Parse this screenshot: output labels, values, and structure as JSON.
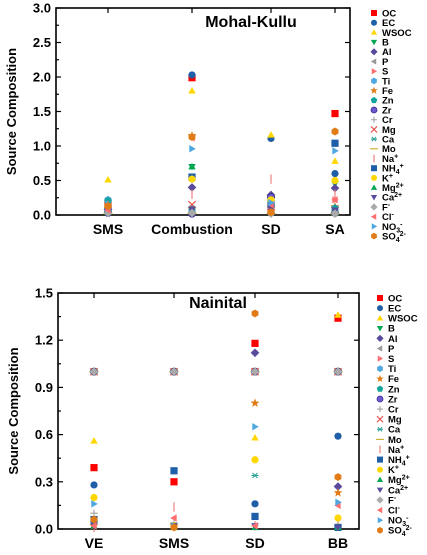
{
  "chart_data": [
    {
      "type": "scatter",
      "title": "Mohal-Kullu",
      "xlabel": "",
      "ylabel": "Source Composition",
      "categories": [
        "SMS",
        "Combustion",
        "SD",
        "SA"
      ],
      "ylim": [
        0,
        3.0
      ],
      "yticks": [
        0.0,
        0.5,
        1.0,
        1.5,
        2.0,
        2.5,
        3.0
      ],
      "ytick_labels": [
        "0.0",
        "0.5",
        "1.0",
        "1.5",
        "2.0",
        "2.5",
        "3.0"
      ],
      "grid": false,
      "legend_position": "right",
      "series": [
        {
          "key": "OC",
          "values": [
            0.15,
            1.99,
            0.08,
            1.47
          ]
        },
        {
          "key": "EC",
          "values": [
            0.05,
            2.03,
            1.11,
            0.6
          ]
        },
        {
          "key": "WSOC",
          "values": [
            0.51,
            1.8,
            1.16,
            0.78
          ]
        },
        {
          "key": "B",
          "values": [
            0.07,
            0.7,
            0.08,
            0.45
          ]
        },
        {
          "key": "Al",
          "values": [
            0.08,
            0.4,
            0.29,
            0.39
          ]
        },
        {
          "key": "P",
          "values": [
            0.04,
            0.05,
            0.04,
            0.04
          ]
        },
        {
          "key": "S",
          "values": [
            0.18,
            0.04,
            0.19,
            0.22
          ]
        },
        {
          "key": "Ti",
          "values": [
            0.22,
            0.06,
            0.12,
            0.05
          ]
        },
        {
          "key": "Fe",
          "values": [
            0.12,
            1.15,
            0.1,
            0.12
          ]
        },
        {
          "key": "Zn",
          "values": [
            0.2,
            0.1,
            0.14,
            0.1
          ]
        },
        {
          "key": "Zr",
          "values": [
            0.03,
            0.02,
            0.26,
            0.03
          ]
        },
        {
          "key": "Cr",
          "values": [
            0.05,
            0.05,
            0.05,
            0.05
          ]
        },
        {
          "key": "Mg",
          "values": [
            0.06,
            0.15,
            0.07,
            0.06
          ]
        },
        {
          "key": "Ca",
          "values": [
            0.1,
            0.06,
            0.22,
            0.08
          ]
        },
        {
          "key": "Mo",
          "values": [
            0.02,
            0.02,
            0.02,
            0.02
          ]
        },
        {
          "key": "Na+",
          "values": [
            0.14,
            0.3,
            0.52,
            0.3
          ]
        },
        {
          "key": "NH4+",
          "values": [
            0.09,
            0.55,
            0.16,
            1.04
          ]
        },
        {
          "key": "K+",
          "values": [
            0.12,
            0.52,
            0.22,
            0.5
          ]
        },
        {
          "key": "Mg2+",
          "values": [
            0.04,
            0.7,
            0.05,
            0.03
          ]
        },
        {
          "key": "Ca2+",
          "values": [
            0.06,
            0.08,
            0.1,
            0.07
          ]
        },
        {
          "key": "F-",
          "values": [
            0.03,
            0.03,
            0.02,
            0.02
          ]
        },
        {
          "key": "Cl-",
          "values": [
            0.07,
            1.12,
            0.15,
            0.22
          ]
        },
        {
          "key": "NO3-",
          "values": [
            0.16,
            0.96,
            0.18,
            0.93
          ]
        },
        {
          "key": "SO4 2-",
          "values": [
            0.13,
            1.13,
            0.04,
            1.21
          ]
        }
      ]
    },
    {
      "type": "scatter",
      "title": "Nainital",
      "xlabel": "",
      "ylabel": "Source Composition",
      "categories": [
        "VE",
        "SMS",
        "SD",
        "BB"
      ],
      "ylim": [
        0,
        1.5
      ],
      "yticks": [
        0.0,
        0.3,
        0.6,
        0.9,
        1.2,
        1.5
      ],
      "ytick_labels": [
        "0.0",
        "0.3",
        "0.6",
        "0.9",
        "1.2",
        "1.5"
      ],
      "grid": false,
      "legend_position": "right",
      "series": [
        {
          "key": "OC",
          "values": [
            0.39,
            0.3,
            1.18,
            1.34
          ]
        },
        {
          "key": "EC",
          "values": [
            0.28,
            0.02,
            0.16,
            0.59
          ]
        },
        {
          "key": "WSOC",
          "values": [
            0.56,
            0.02,
            0.58,
            1.36
          ]
        },
        {
          "key": "B",
          "values": [
            1.0,
            1.0,
            1.0,
            1.0
          ]
        },
        {
          "key": "Al",
          "values": [
            1.0,
            1.0,
            1.12,
            0.27
          ]
        },
        {
          "key": "P",
          "values": [
            1.0,
            1.0,
            1.0,
            1.0
          ]
        },
        {
          "key": "S",
          "values": [
            1.0,
            1.0,
            1.0,
            1.0
          ]
        },
        {
          "key": "Ti",
          "values": [
            1.0,
            1.0,
            1.0,
            1.0
          ]
        },
        {
          "key": "Fe",
          "values": [
            0.02,
            0.02,
            0.8,
            0.23
          ]
        },
        {
          "key": "Zn",
          "values": [
            1.0,
            1.0,
            1.0,
            1.0
          ]
        },
        {
          "key": "Zr",
          "values": [
            1.0,
            1.0,
            1.0,
            1.0
          ]
        },
        {
          "key": "Cr",
          "values": [
            0.1,
            0.04,
            0.02,
            0.02
          ]
        },
        {
          "key": "Mg",
          "values": [
            1.0,
            1.0,
            1.0,
            1.0
          ]
        },
        {
          "key": "Ca",
          "values": [
            1.0,
            1.0,
            0.34,
            1.0
          ]
        },
        {
          "key": "Mo",
          "values": [
            1.0,
            1.0,
            1.0,
            1.0
          ]
        },
        {
          "key": "Na+",
          "values": [
            0.01,
            0.14,
            0.02,
            0.02
          ]
        },
        {
          "key": "NH4+",
          "values": [
            0.06,
            0.37,
            0.08,
            0.01
          ]
        },
        {
          "key": "K+",
          "values": [
            0.2,
            0.02,
            0.44,
            0.07
          ]
        },
        {
          "key": "Mg2+",
          "values": [
            0.02,
            0.01,
            0.01,
            0.01
          ]
        },
        {
          "key": "Ca2+",
          "values": [
            0.02,
            0.02,
            0.02,
            0.01
          ]
        },
        {
          "key": "F-",
          "values": [
            1.0,
            1.0,
            1.0,
            1.0
          ]
        },
        {
          "key": "Cl-",
          "values": [
            0.02,
            0.07,
            0.02,
            0.15
          ]
        },
        {
          "key": "NO3-",
          "values": [
            0.16,
            0.02,
            0.65,
            0.17
          ]
        },
        {
          "key": "SO4 2-",
          "values": [
            0.06,
            0.01,
            1.37,
            0.33
          ]
        }
      ]
    }
  ],
  "legend": [
    {
      "key": "OC",
      "base": "OC",
      "sup": "",
      "sub": "",
      "marker": "square",
      "color": "#ff0000"
    },
    {
      "key": "EC",
      "base": "EC",
      "sup": "",
      "sub": "",
      "marker": "circle",
      "color": "#1f5fa8"
    },
    {
      "key": "WSOC",
      "base": "WSOC",
      "sup": "",
      "sub": "",
      "marker": "triangle-up",
      "color": "#ffd700"
    },
    {
      "key": "B",
      "base": "B",
      "sup": "",
      "sub": "",
      "marker": "triangle-down",
      "color": "#00a651"
    },
    {
      "key": "Al",
      "base": "Al",
      "sup": "",
      "sub": "",
      "marker": "diamond",
      "color": "#5a4a9c"
    },
    {
      "key": "P",
      "base": "P",
      "sup": "",
      "sub": "",
      "marker": "triangle-left",
      "color": "#999999"
    },
    {
      "key": "S",
      "base": "S",
      "sup": "",
      "sub": "",
      "marker": "triangle-right",
      "color": "#ff6f6f"
    },
    {
      "key": "Ti",
      "base": "Ti",
      "sup": "",
      "sub": "",
      "marker": "hexagon",
      "color": "#4fa7e0"
    },
    {
      "key": "Fe",
      "base": "Fe",
      "sup": "",
      "sub": "",
      "marker": "star",
      "color": "#e07b16"
    },
    {
      "key": "Zn",
      "base": "Zn",
      "sup": "",
      "sub": "",
      "marker": "pentagon",
      "color": "#10a59c"
    },
    {
      "key": "Zr",
      "base": "Zr",
      "sup": "",
      "sub": "",
      "marker": "ball",
      "color": "#6a5acd"
    },
    {
      "key": "Cr",
      "base": "Cr",
      "sup": "",
      "sub": "",
      "marker": "plus",
      "color": "#aaaaaa"
    },
    {
      "key": "Mg",
      "base": "Mg",
      "sup": "",
      "sub": "",
      "marker": "x",
      "color": "#e8544f"
    },
    {
      "key": "Ca",
      "base": "Ca",
      "sup": "",
      "sub": "",
      "marker": "asterisk",
      "color": "#2aa198"
    },
    {
      "key": "Mo",
      "base": "Mo",
      "sup": "",
      "sub": "",
      "marker": "hline",
      "color": "#c9b037"
    },
    {
      "key": "Na+",
      "base": "Na",
      "sup": "+",
      "sub": "",
      "marker": "vline",
      "color": "#f08080"
    },
    {
      "key": "NH4+",
      "base": "NH",
      "sup": "+",
      "sub": "4",
      "marker": "square",
      "color": "#1f5fa8"
    },
    {
      "key": "K+",
      "base": "K",
      "sup": "+",
      "sub": "",
      "marker": "circle",
      "color": "#ffd700"
    },
    {
      "key": "Mg2+",
      "base": "Mg",
      "sup": "2+",
      "sub": "",
      "marker": "triangle-up",
      "color": "#00a651"
    },
    {
      "key": "Ca2+",
      "base": "Ca",
      "sup": "2+",
      "sub": "",
      "marker": "triangle-down",
      "color": "#5a4a9c"
    },
    {
      "key": "F-",
      "base": "F",
      "sup": "-",
      "sub": "",
      "marker": "diamond",
      "color": "#aaaaaa"
    },
    {
      "key": "Cl-",
      "base": "Cl",
      "sup": "-",
      "sub": "",
      "marker": "triangle-left",
      "color": "#ff6f6f"
    },
    {
      "key": "NO3-",
      "base": "NO",
      "sup": "-",
      "sub": "3",
      "marker": "triangle-right",
      "color": "#4fa7e0"
    },
    {
      "key": "SO4 2-",
      "base": "SO",
      "sup": "2-",
      "sub": "4",
      "marker": "hexagon",
      "color": "#e07b16"
    }
  ]
}
